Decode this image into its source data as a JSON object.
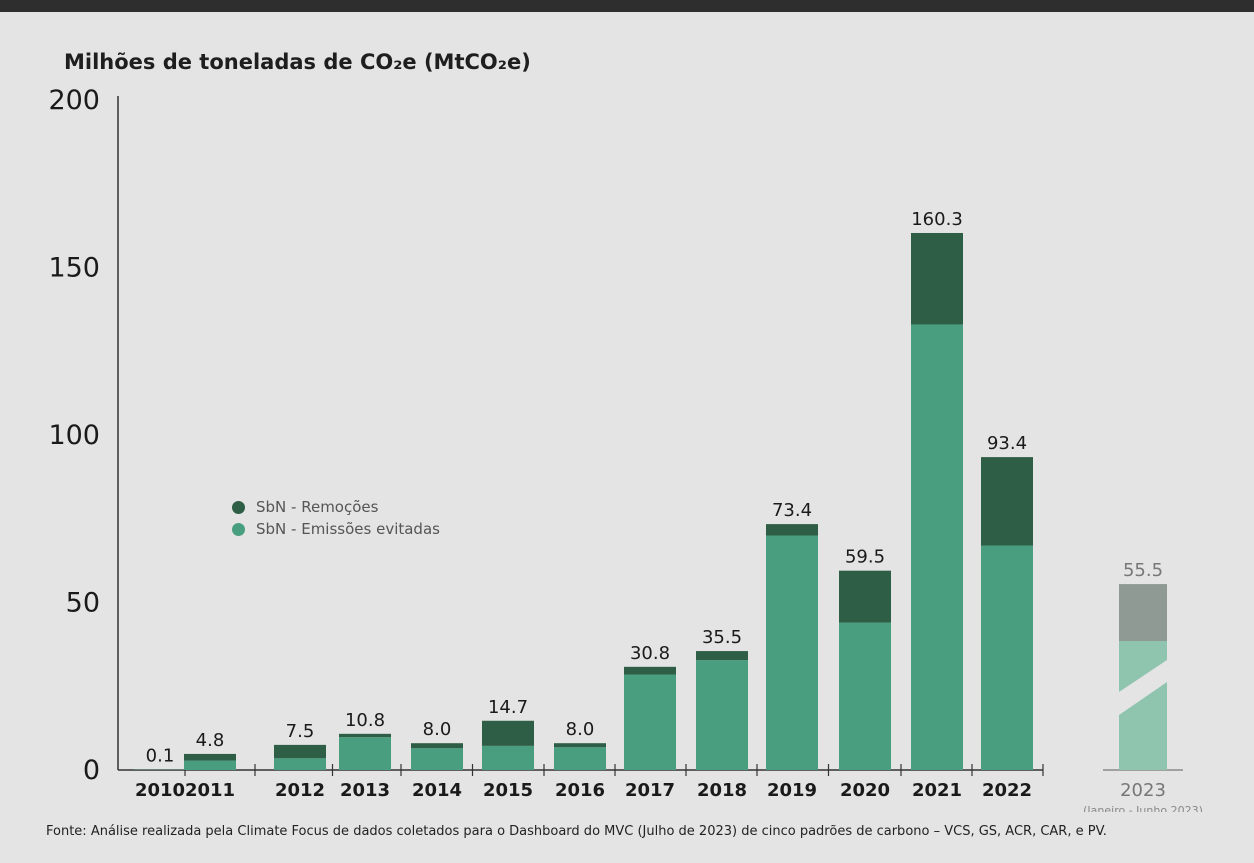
{
  "chart_data": {
    "type": "bar",
    "stacked": true,
    "ylabel": "Milhões de toneladas de CO₂e (MtCO₂e)",
    "ylim": [
      0,
      200
    ],
    "yticks": [
      "0",
      "50",
      "100",
      "150",
      "200"
    ],
    "categories": [
      "2010",
      "2011",
      "2012",
      "2013",
      "2014",
      "2015",
      "2016",
      "2017",
      "2018",
      "2019",
      "2020",
      "2021",
      "2022",
      "2023"
    ],
    "totals": [
      "0.1",
      "4.8",
      "7.5",
      "10.8",
      "8.0",
      "14.7",
      "8.0",
      "30.8",
      "35.5",
      "73.4",
      "59.5",
      "160.3",
      "93.4",
      "55.5"
    ],
    "series": [
      {
        "name": "SbN - Emissões evitadas",
        "values": [
          0.1,
          2.8,
          3.5,
          9.8,
          6.5,
          7.2,
          6.8,
          28.5,
          32.8,
          70.0,
          44.0,
          133.0,
          67.0,
          38.5
        ]
      },
      {
        "name": "SbN - Remoções",
        "values": [
          0.0,
          2.0,
          4.0,
          1.0,
          1.5,
          7.5,
          1.2,
          2.3,
          2.7,
          3.4,
          15.5,
          27.3,
          26.4,
          17.0
        ]
      }
    ],
    "legend_position": "left-middle",
    "annotations": [
      {
        "category": "2023",
        "text": "(Janeiro - Junho 2023)"
      }
    ],
    "grid": false,
    "colors": {
      "SbN - Emissões evitadas": "#4a9e80",
      "SbN - Remoções": "#2e5e45",
      "partial_bottom": "#8fc5af",
      "partial_top": "#909a95"
    }
  },
  "legend": {
    "removals": "SbN - Remoções",
    "avoided": "SbN - Emissões evitadas"
  },
  "source": "Fonte: Análise realizada pela Climate Focus de dados coletados para o Dashboard do MVC (Julho de 2023) de cinco padrões de carbono – VCS, GS, ACR, CAR, e PV."
}
